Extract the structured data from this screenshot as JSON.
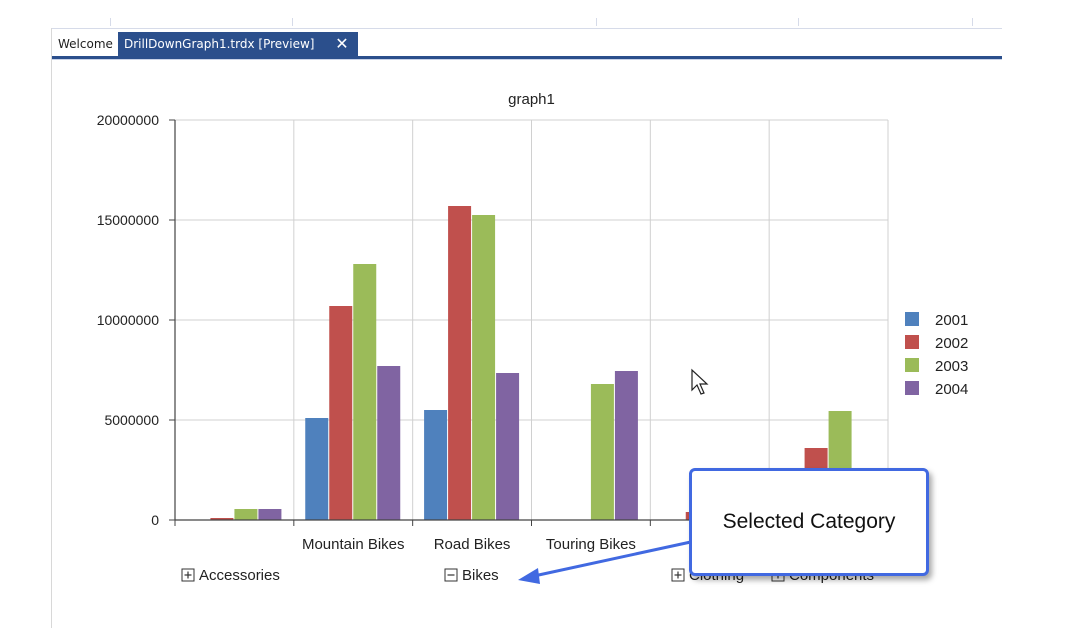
{
  "tabs": {
    "welcome_label": "Welcome",
    "active_label": "DrillDownGraph1.trdx [Preview]",
    "close_glyph": "✕"
  },
  "callout": {
    "text": "Selected Category",
    "border_color": "#4169e1"
  },
  "chart_data": {
    "type": "bar",
    "title": "graph1",
    "xlabel": "",
    "ylabel": "",
    "ylim": [
      0,
      20000000
    ],
    "yticks": [
      0,
      5000000,
      10000000,
      15000000,
      20000000
    ],
    "grid": true,
    "legend_position": "right",
    "categories": [
      "",
      "Mountain Bikes",
      "Road Bikes",
      "Touring Bikes",
      "",
      ""
    ],
    "group_labels": [
      {
        "toggle": "+",
        "label": "Accessories"
      },
      {
        "toggle": "−",
        "label": "Bikes"
      },
      {
        "toggle": "+",
        "label": "Clothing"
      },
      {
        "toggle": "+",
        "label": "Components"
      }
    ],
    "series": [
      {
        "name": "2001",
        "color": "#4f81bd",
        "values": [
          0,
          5100000,
          5500000,
          0,
          0,
          0
        ]
      },
      {
        "name": "2002",
        "color": "#c0504d",
        "values": [
          100000,
          10700000,
          15700000,
          0,
          400000,
          3600000
        ]
      },
      {
        "name": "2003",
        "color": "#9bbb59",
        "values": [
          550000,
          12800000,
          15250000,
          6800000,
          0,
          5450000
        ]
      },
      {
        "name": "2004",
        "color": "#8064a2",
        "values": [
          550000,
          7700000,
          7350000,
          7450000,
          0,
          0
        ]
      }
    ]
  }
}
